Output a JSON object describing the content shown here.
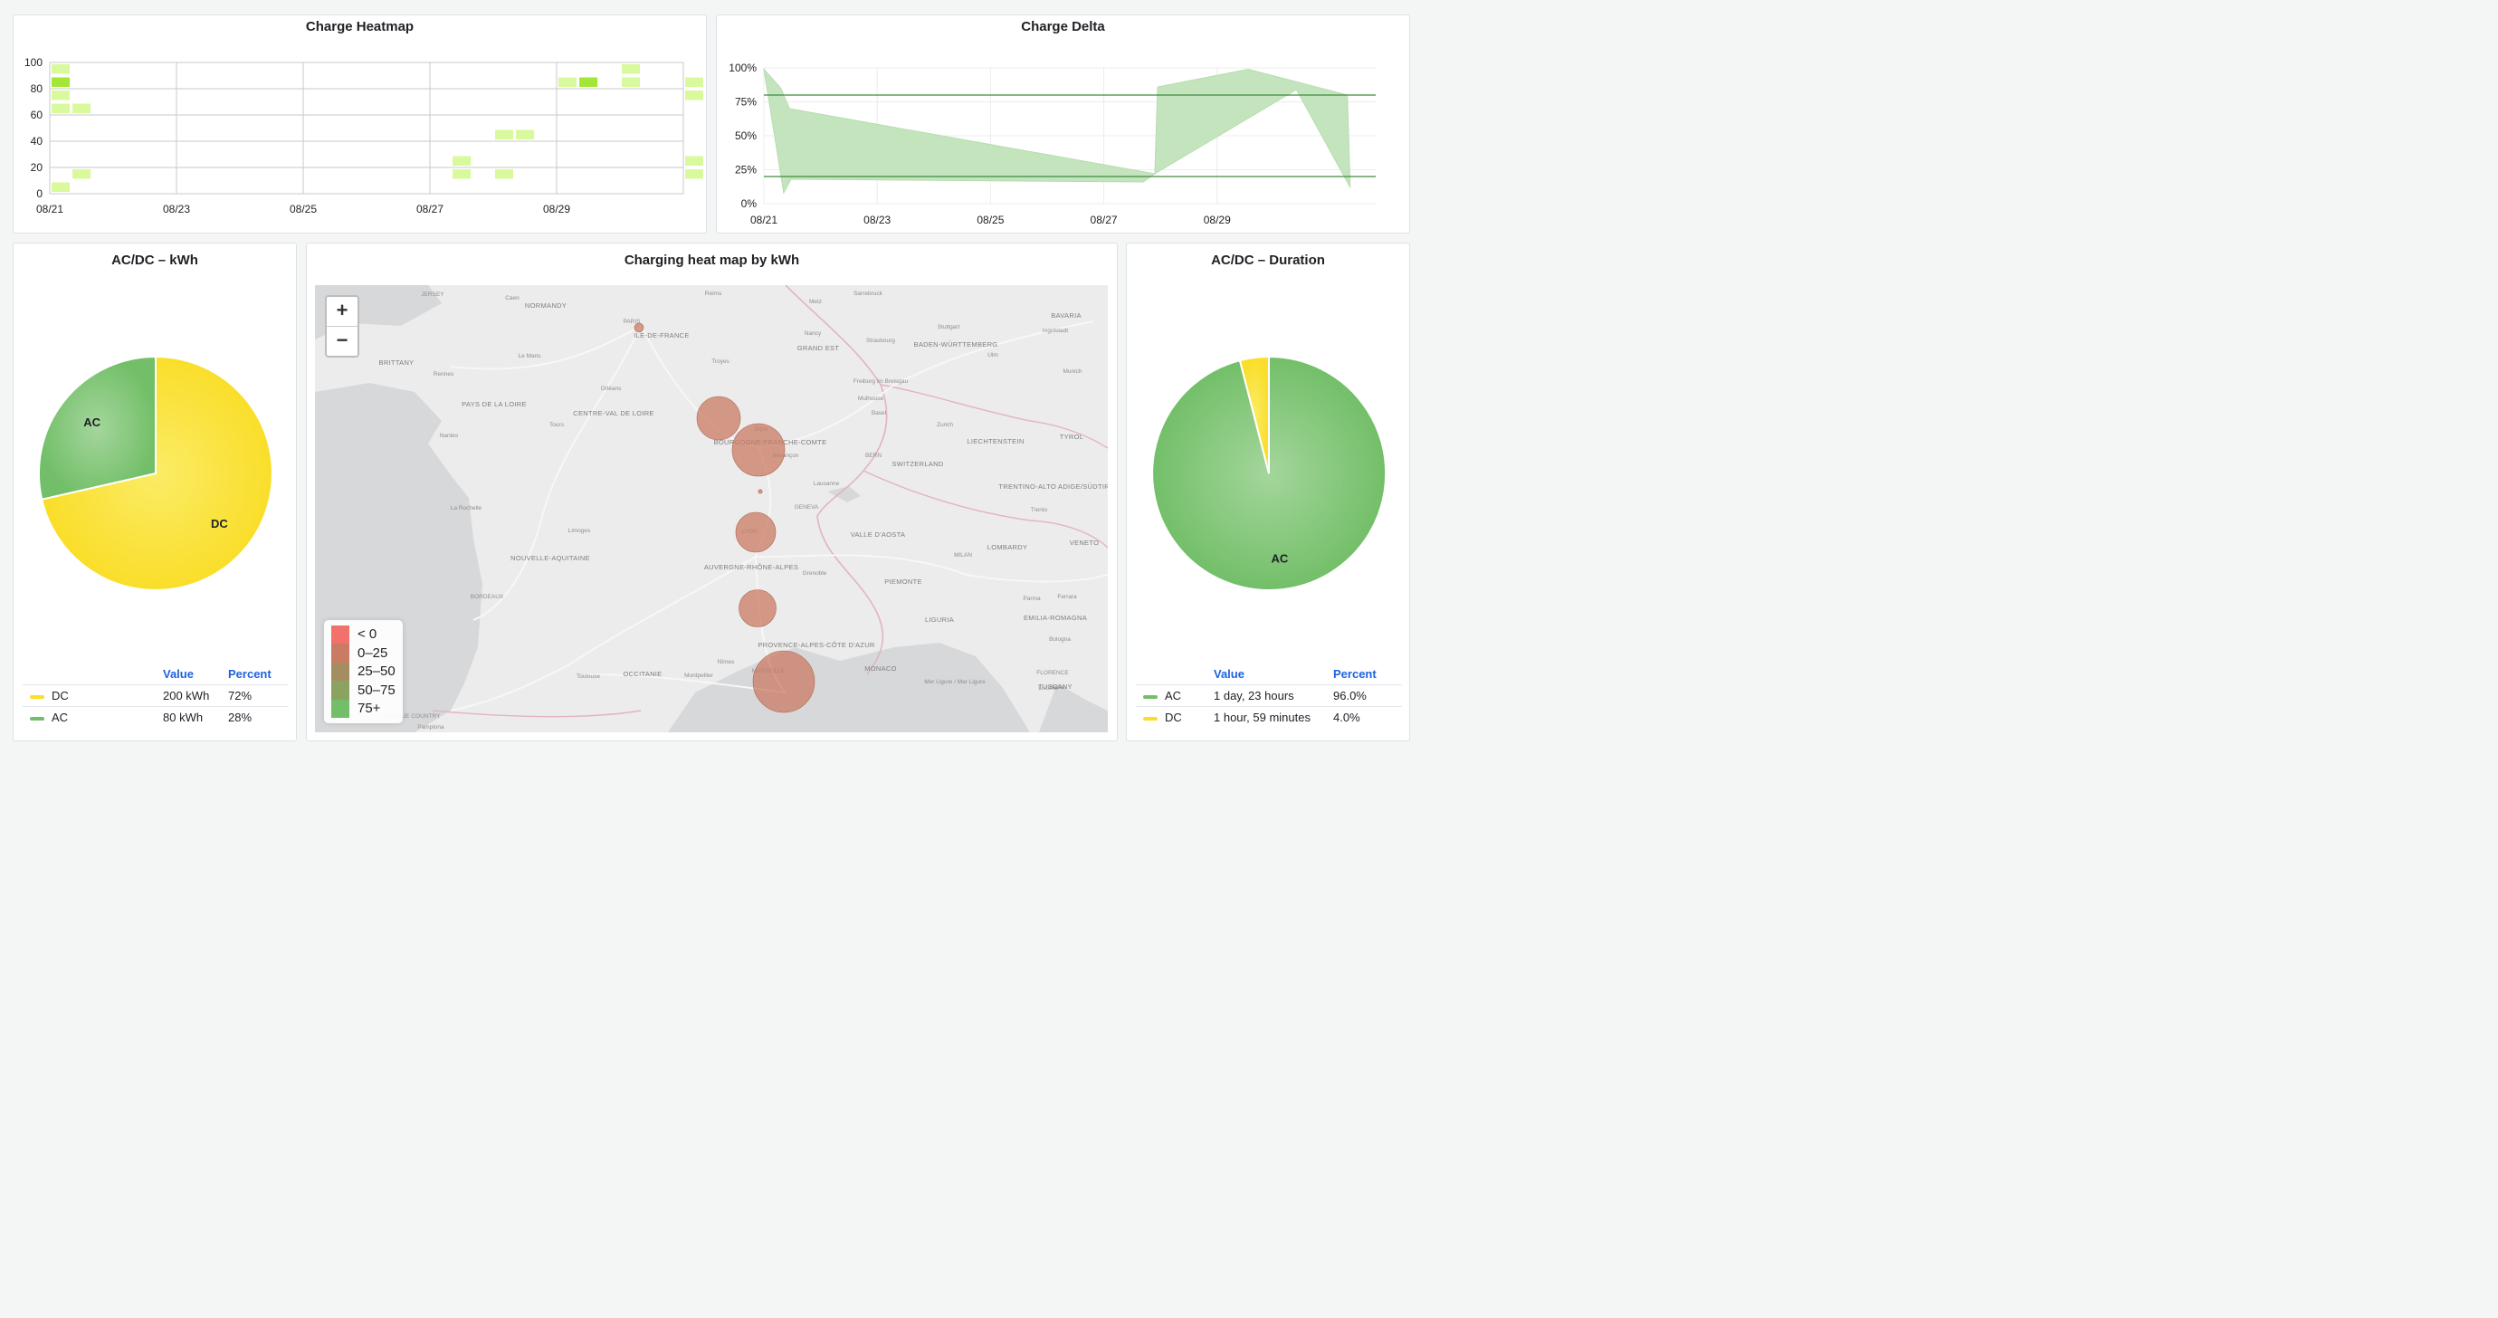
{
  "panels": {
    "heatmap_title": "Charge Heatmap",
    "delta_title": "Charge Delta",
    "acdc_kwh_title": "AC/DC – kWh",
    "map_title": "Charging heat map by kWh",
    "acdc_duration_title": "AC/DC – Duration"
  },
  "colors": {
    "green": "#73bf69",
    "yellow": "#fade2a",
    "heat_light": "#d9f99d",
    "heat_bright": "#a3e635",
    "map_bubble": "#c97b63",
    "link_blue": "#1f62e0"
  },
  "chart_data": [
    {
      "type": "heatmap",
      "title": "Charge Heatmap",
      "x_ticks": [
        "08/21",
        "08/23",
        "08/25",
        "08/27",
        "08/29"
      ],
      "y_ticks": [
        "0",
        "20",
        "40",
        "60",
        "80",
        "100"
      ],
      "ylim": [
        0,
        100
      ],
      "cells": [
        {
          "x": "08/21",
          "y": 95,
          "level": "low"
        },
        {
          "x": "08/21",
          "y": 85,
          "level": "high"
        },
        {
          "x": "08/21",
          "y": 75,
          "level": "low"
        },
        {
          "x": "08/21",
          "y": 65,
          "level": "low"
        },
        {
          "x": "08/21",
          "y": 5,
          "level": "low"
        },
        {
          "x": "08/21 12h",
          "y": 65,
          "level": "low"
        },
        {
          "x": "08/21 12h",
          "y": 15,
          "level": "low"
        },
        {
          "x": "08/27 12h",
          "y": 25,
          "level": "low"
        },
        {
          "x": "08/27 12h",
          "y": 15,
          "level": "low"
        },
        {
          "x": "08/28",
          "y": 45,
          "level": "low"
        },
        {
          "x": "08/28",
          "y": 15,
          "level": "low"
        },
        {
          "x": "08/28 12h",
          "y": 45,
          "level": "low"
        },
        {
          "x": "08/29",
          "y": 85,
          "level": "low"
        },
        {
          "x": "08/29 12h",
          "y": 85,
          "level": "high"
        },
        {
          "x": "08/30",
          "y": 95,
          "level": "low"
        },
        {
          "x": "08/30",
          "y": 85,
          "level": "low"
        },
        {
          "x": "08/31",
          "y": 85,
          "level": "low"
        },
        {
          "x": "08/31",
          "y": 75,
          "level": "low"
        },
        {
          "x": "08/31",
          "y": 25,
          "level": "low"
        },
        {
          "x": "08/31",
          "y": 15,
          "level": "low"
        }
      ]
    },
    {
      "type": "area",
      "title": "Charge Delta",
      "x_ticks": [
        "08/21",
        "08/23",
        "08/25",
        "08/27",
        "08/29"
      ],
      "y_ticks": [
        "0%",
        "25%",
        "50%",
        "75%",
        "100%"
      ],
      "ylim": [
        0,
        100
      ],
      "upper": [
        [
          0.0,
          99
        ],
        [
          0.3,
          85
        ],
        [
          0.45,
          70
        ],
        [
          6.9,
          22
        ],
        [
          6.95,
          86
        ],
        [
          8.55,
          99
        ],
        [
          10.3,
          80
        ],
        [
          10.35,
          12
        ]
      ],
      "lower": [
        [
          10.35,
          12
        ],
        [
          9.4,
          84
        ],
        [
          6.9,
          22
        ],
        [
          6.7,
          16
        ],
        [
          0.48,
          18
        ],
        [
          0.35,
          8
        ],
        [
          0.0,
          99
        ]
      ],
      "thresholds": [
        80,
        20
      ]
    },
    {
      "type": "pie",
      "title": "AC/DC – kWh",
      "slices": [
        {
          "label": "DC",
          "value": 200,
          "display": "200 kWh",
          "percent": "72%",
          "color": "#fade2a"
        },
        {
          "label": "AC",
          "value": 80,
          "display": "80 kWh",
          "percent": "28%",
          "color": "#73bf69"
        }
      ],
      "legend_headers": {
        "value": "Value",
        "percent": "Percent"
      }
    },
    {
      "type": "pie",
      "title": "AC/DC – Duration",
      "slices": [
        {
          "label": "AC",
          "value": 96.0,
          "display": "1 day, 23 hours",
          "percent": "96.0%",
          "color": "#73bf69"
        },
        {
          "label": "DC",
          "value": 4.0,
          "display": "1 hour, 59 minutes",
          "percent": "4.0%",
          "color": "#fade2a"
        }
      ],
      "legend_headers": {
        "value": "Value",
        "percent": "Percent"
      }
    }
  ],
  "map": {
    "zoom_in": "+",
    "zoom_out": "−",
    "legend": [
      {
        "label": "< 0",
        "color": "#f2716b"
      },
      {
        "label": "0–25",
        "color": "#c97b63"
      },
      {
        "label": "25–50",
        "color": "#a58d62"
      },
      {
        "label": "50–75",
        "color": "#8ba35f"
      },
      {
        "label": "75+",
        "color": "#73bf69"
      }
    ],
    "labels": [
      {
        "text": "NORMANDY",
        "region": true
      },
      {
        "text": "ILE-DE-FRANCE",
        "region": true
      },
      {
        "text": "BRITTANY",
        "region": true
      },
      {
        "text": "PAYS DE LA LOIRE",
        "region": true
      },
      {
        "text": "CENTRE-VAL DE LOIRE",
        "region": true
      },
      {
        "text": "BOURGOGNE-FRANCHE-COMTE",
        "region": true
      },
      {
        "text": "GRAND EST",
        "region": true
      },
      {
        "text": "BADEN-WÜRTTEMBERG",
        "region": true
      },
      {
        "text": "BAVARIA",
        "region": true
      },
      {
        "text": "LIECHTENSTEIN",
        "region": true
      },
      {
        "text": "SWITZERLAND",
        "region": true
      },
      {
        "text": "TYROL",
        "region": true
      },
      {
        "text": "TRENTINO-ALTO ADIGE/SÜDTIROL",
        "region": true
      },
      {
        "text": "NOUVELLE-AQUITAINE",
        "region": true
      },
      {
        "text": "AUVERGNE-RHÔNE-ALPES",
        "region": true
      },
      {
        "text": "VALLE D'AOSTA",
        "region": true
      },
      {
        "text": "LOMBARDY",
        "region": true
      },
      {
        "text": "VENETO",
        "region": true
      },
      {
        "text": "PIEMONTE",
        "region": true
      },
      {
        "text": "OCCITANIE",
        "region": true
      },
      {
        "text": "PROVENCE-ALPES-CÔTE D'AZUR",
        "region": true
      },
      {
        "text": "LIGURIA",
        "region": true
      },
      {
        "text": "EMILIA-ROMAGNA",
        "region": true
      },
      {
        "text": "TUSCANY",
        "region": true
      },
      {
        "text": "MONACO",
        "region": true
      },
      {
        "text": "PARIS",
        "region": false
      },
      {
        "text": "LYON",
        "region": false
      },
      {
        "text": "GENEVA",
        "region": false
      },
      {
        "text": "JERSEY",
        "region": false
      },
      {
        "text": "SAARLAND",
        "region": false
      },
      {
        "text": "Caen",
        "region": false
      },
      {
        "text": "Rennes",
        "region": false
      },
      {
        "text": "Le Mans",
        "region": false
      },
      {
        "text": "Orléans",
        "region": false
      },
      {
        "text": "Tours",
        "region": false
      },
      {
        "text": "Nantes",
        "region": false
      },
      {
        "text": "La Rochelle",
        "region": false
      },
      {
        "text": "Limoges",
        "region": false
      },
      {
        "text": "BORDEAUX",
        "region": false
      },
      {
        "text": "Toulouse",
        "region": false
      },
      {
        "text": "Montpellier",
        "region": false
      },
      {
        "text": "Nîmes",
        "region": false
      },
      {
        "text": "MARSEILLE",
        "region": false
      },
      {
        "text": "Dijon",
        "region": false
      },
      {
        "text": "Besançon",
        "region": false
      },
      {
        "text": "Troyes",
        "region": false
      },
      {
        "text": "Reims",
        "region": false
      },
      {
        "text": "Metz",
        "region": false
      },
      {
        "text": "Nancy",
        "region": false
      },
      {
        "text": "Strasbourg",
        "region": false
      },
      {
        "text": "Stuttgart",
        "region": false
      },
      {
        "text": "Ulm",
        "region": false
      },
      {
        "text": "Munich",
        "region": false
      },
      {
        "text": "Freiburg im Breisgau",
        "region": false
      },
      {
        "text": "Mulhouse",
        "region": false
      },
      {
        "text": "Basel",
        "region": false
      },
      {
        "text": "Zurich",
        "region": false
      },
      {
        "text": "BERN",
        "region": false
      },
      {
        "text": "Lausanne",
        "region": false
      },
      {
        "text": "Grenoble",
        "region": false
      },
      {
        "text": "MILAN",
        "region": false
      },
      {
        "text": "Parma",
        "region": false
      },
      {
        "text": "Ferrara",
        "region": false
      },
      {
        "text": "Bologna",
        "region": false
      },
      {
        "text": "FLORENCE",
        "region": false
      },
      {
        "text": "Livorno",
        "region": false
      },
      {
        "text": "Siena",
        "region": false
      },
      {
        "text": "Trento",
        "region": false
      },
      {
        "text": "Ingolstadt",
        "region": false
      },
      {
        "text": "Sarrebruck",
        "region": false
      },
      {
        "text": "Pamplona",
        "region": false
      },
      {
        "text": "BASQUE COUNTRY",
        "region": false
      },
      {
        "text": "Mer Ligure / Mar Ligure",
        "region": false
      }
    ]
  }
}
